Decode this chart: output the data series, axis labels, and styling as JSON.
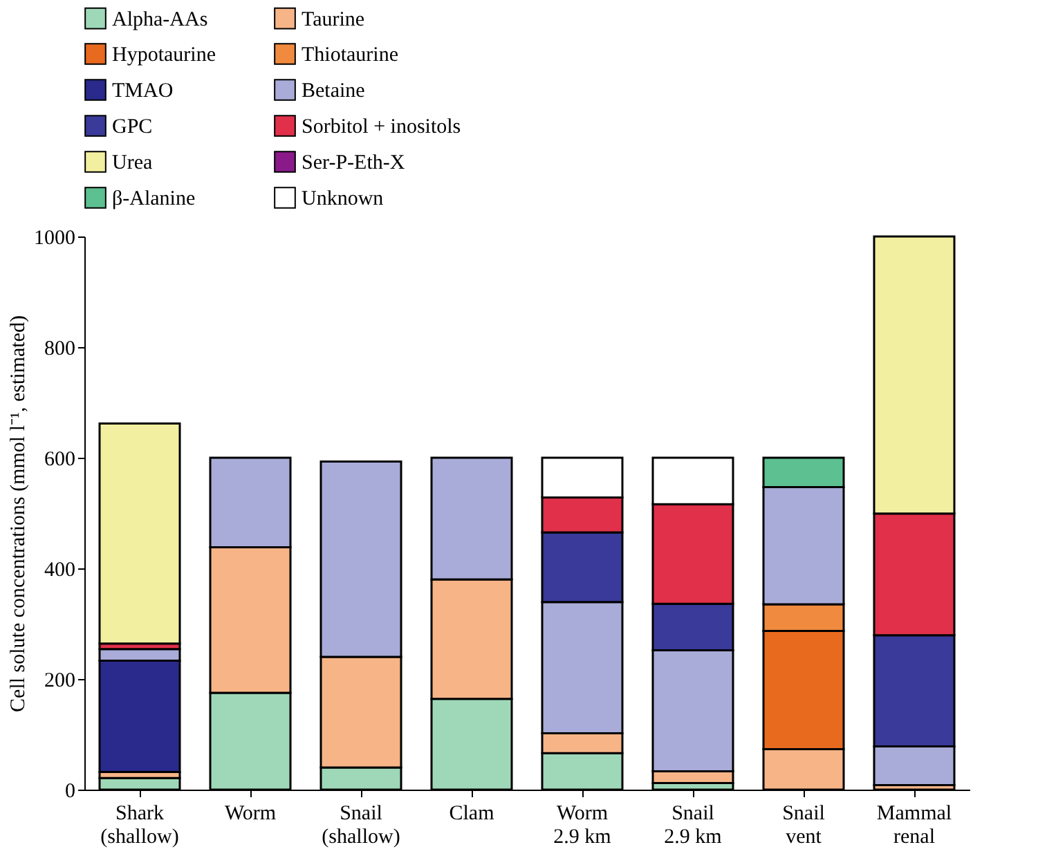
{
  "chart_data": {
    "type": "bar",
    "stacked": true,
    "ylabel": "Cell solute concentrations (mmol l⁻¹, estimated)",
    "categories": [
      "Shark\n(shallow)",
      "Worm",
      "Snail\n(shallow)",
      "Clam",
      "Worm\n2.9 km",
      "Snail\n2.9 km",
      "Snail\nvent",
      "Mammal\nrenal"
    ],
    "ylim": [
      0,
      1000
    ],
    "yticks": [
      0,
      200,
      400,
      600,
      800,
      1000
    ],
    "grid": false,
    "legend": "top",
    "series": [
      {
        "name": "Alpha-AAs",
        "color": "#9fd8b8",
        "values": [
          21,
          175,
          40,
          164,
          66,
          12,
          null,
          null
        ]
      },
      {
        "name": "Taurine",
        "color": "#f6b487",
        "values": [
          11,
          263,
          200,
          216,
          36,
          21,
          73,
          8
        ]
      },
      {
        "name": "Hypotaurine",
        "color": "#e86a1e",
        "values": [
          null,
          null,
          null,
          null,
          null,
          null,
          214,
          null
        ]
      },
      {
        "name": "Thiotaurine",
        "color": "#f08a3e",
        "values": [
          null,
          null,
          null,
          null,
          null,
          null,
          48,
          null
        ]
      },
      {
        "name": "TMAO",
        "color": "#2a2a8c",
        "values": [
          201,
          null,
          null,
          null,
          null,
          null,
          null,
          null
        ]
      },
      {
        "name": "Betaine",
        "color": "#a9acd8",
        "values": [
          21,
          162,
          353,
          220,
          237,
          219,
          212,
          70
        ]
      },
      {
        "name": "GPC",
        "color": "#3a3a9a",
        "values": [
          null,
          null,
          null,
          null,
          126,
          84,
          null,
          201
        ]
      },
      {
        "name": "Sorbitol + inositols",
        "color": "#e0304a",
        "values": [
          10,
          null,
          null,
          null,
          63,
          180,
          null,
          220
        ]
      },
      {
        "name": "Urea",
        "color": "#f2f0a0",
        "values": [
          398,
          null,
          null,
          null,
          null,
          null,
          null,
          501
        ]
      },
      {
        "name": "Ser-P-Eth-X",
        "color": "#8a1a8a",
        "values": [
          null,
          null,
          null,
          null,
          null,
          null,
          null,
          null
        ]
      },
      {
        "name": "β-Alanine",
        "color": "#5cc090",
        "values": [
          null,
          null,
          null,
          null,
          null,
          null,
          53,
          null
        ]
      },
      {
        "name": "Unknown",
        "color": "#ffffff",
        "values": [
          null,
          null,
          null,
          null,
          72,
          84,
          null,
          null
        ]
      }
    ]
  }
}
